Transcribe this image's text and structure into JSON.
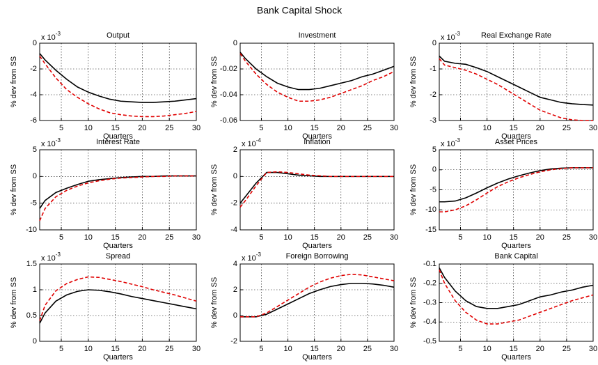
{
  "title": "Bank Capital Shock",
  "chart_data": [
    {
      "type": "line",
      "title": "Output",
      "xlabel": "Quarters",
      "ylabel": "% dev from SS",
      "y_multiplier": "x 10",
      "y_multiplier_exponent": "-3",
      "grid": true,
      "x": [
        1,
        2,
        4,
        6,
        8,
        10,
        12,
        14,
        16,
        18,
        20,
        22,
        24,
        26,
        28,
        30
      ],
      "xlim": [
        1,
        30
      ],
      "xticks": [
        5,
        10,
        15,
        20,
        25,
        30
      ],
      "ylim": [
        -6,
        0
      ],
      "yticks": [
        -6,
        -4,
        -2,
        0
      ],
      "series": [
        {
          "color": "#000000",
          "line_style": "solid",
          "values": [
            -0.8,
            -1.3,
            -2.1,
            -2.8,
            -3.4,
            -3.8,
            -4.1,
            -4.35,
            -4.5,
            -4.55,
            -4.6,
            -4.6,
            -4.55,
            -4.5,
            -4.4,
            -4.3
          ]
        },
        {
          "color": "#e00000",
          "line_style": "dashed",
          "values": [
            -1.0,
            -1.6,
            -2.7,
            -3.6,
            -4.2,
            -4.7,
            -5.1,
            -5.4,
            -5.55,
            -5.65,
            -5.7,
            -5.7,
            -5.65,
            -5.55,
            -5.45,
            -5.3
          ]
        }
      ]
    },
    {
      "type": "line",
      "title": "Investment",
      "xlabel": "Quarters",
      "ylabel": "% dev from SS",
      "grid": true,
      "x": [
        1,
        2,
        4,
        6,
        8,
        10,
        12,
        14,
        16,
        18,
        20,
        22,
        24,
        26,
        28,
        30
      ],
      "xlim": [
        1,
        30
      ],
      "xticks": [
        5,
        10,
        15,
        20,
        25,
        30
      ],
      "ylim": [
        -0.06,
        0
      ],
      "yticks": [
        -0.06,
        -0.04,
        -0.02,
        0
      ],
      "series": [
        {
          "color": "#000000",
          "line_style": "solid",
          "values": [
            -0.007,
            -0.012,
            -0.02,
            -0.026,
            -0.031,
            -0.034,
            -0.036,
            -0.036,
            -0.035,
            -0.033,
            -0.031,
            -0.029,
            -0.026,
            -0.024,
            -0.021,
            -0.018
          ]
        },
        {
          "color": "#e00000",
          "line_style": "dashed",
          "values": [
            -0.008,
            -0.014,
            -0.024,
            -0.032,
            -0.038,
            -0.042,
            -0.045,
            -0.045,
            -0.044,
            -0.042,
            -0.039,
            -0.036,
            -0.033,
            -0.029,
            -0.026,
            -0.022
          ]
        }
      ]
    },
    {
      "type": "line",
      "title": "Real Exchange Rate",
      "xlabel": "Quarters",
      "ylabel": "% dev from SS",
      "y_multiplier": "x 10",
      "y_multiplier_exponent": "-3",
      "grid": true,
      "x": [
        1,
        2,
        4,
        6,
        8,
        10,
        12,
        14,
        16,
        18,
        20,
        22,
        24,
        26,
        28,
        30
      ],
      "xlim": [
        1,
        30
      ],
      "xticks": [
        5,
        10,
        15,
        20,
        25,
        30
      ],
      "ylim": [
        -3,
        0
      ],
      "yticks": [
        -3,
        -2,
        -1,
        0
      ],
      "series": [
        {
          "color": "#000000",
          "line_style": "solid",
          "values": [
            -0.5,
            -0.7,
            -0.78,
            -0.82,
            -0.95,
            -1.1,
            -1.3,
            -1.5,
            -1.7,
            -1.9,
            -2.1,
            -2.2,
            -2.3,
            -2.35,
            -2.38,
            -2.4
          ]
        },
        {
          "color": "#e00000",
          "line_style": "dashed",
          "values": [
            -0.6,
            -0.85,
            -0.95,
            -1.05,
            -1.2,
            -1.4,
            -1.6,
            -1.85,
            -2.1,
            -2.35,
            -2.6,
            -2.75,
            -2.9,
            -2.97,
            -3.0,
            -3.0
          ]
        }
      ]
    },
    {
      "type": "line",
      "title": "Interest Rate",
      "xlabel": "Quarters",
      "ylabel": "% dev from SS",
      "y_multiplier": "x 10",
      "y_multiplier_exponent": "-3",
      "grid": true,
      "x": [
        1,
        2,
        4,
        6,
        8,
        10,
        12,
        14,
        16,
        18,
        20,
        22,
        24,
        26,
        28,
        30
      ],
      "xlim": [
        1,
        30
      ],
      "xticks": [
        5,
        10,
        15,
        20,
        25,
        30
      ],
      "ylim": [
        -10,
        5
      ],
      "yticks": [
        -10,
        -5,
        0,
        5
      ],
      "series": [
        {
          "color": "#000000",
          "line_style": "solid",
          "values": [
            -6,
            -4.5,
            -3,
            -2.2,
            -1.5,
            -0.9,
            -0.6,
            -0.4,
            -0.2,
            -0.1,
            0,
            0,
            0.1,
            0.1,
            0.1,
            0.1
          ]
        },
        {
          "color": "#e00000",
          "line_style": "dashed",
          "values": [
            -8.3,
            -6,
            -3.8,
            -2.6,
            -1.8,
            -1.2,
            -0.8,
            -0.5,
            -0.3,
            -0.2,
            -0.1,
            0,
            0,
            0.1,
            0.1,
            0.1
          ]
        }
      ]
    },
    {
      "type": "line",
      "title": "Inflation",
      "xlabel": "Quarters",
      "ylabel": "% dev from SS",
      "y_multiplier": "x 10",
      "y_multiplier_exponent": "-4",
      "grid": true,
      "x": [
        1,
        2,
        4,
        6,
        8,
        10,
        12,
        14,
        16,
        18,
        20,
        22,
        24,
        26,
        28,
        30
      ],
      "xlim": [
        1,
        30
      ],
      "xticks": [
        5,
        10,
        15,
        20,
        25,
        30
      ],
      "ylim": [
        -4,
        2
      ],
      "yticks": [
        -4,
        -2,
        0,
        2
      ],
      "series": [
        {
          "color": "#000000",
          "line_style": "solid",
          "values": [
            -2,
            -1.5,
            -0.5,
            0.3,
            0.3,
            0.2,
            0.1,
            0.05,
            0,
            0,
            0,
            0,
            0,
            0,
            0,
            0
          ]
        },
        {
          "color": "#e00000",
          "line_style": "dashed",
          "values": [
            -2.3,
            -1.8,
            -0.7,
            0.3,
            0.35,
            0.3,
            0.2,
            0.1,
            0.05,
            0,
            0,
            0,
            0,
            0,
            0,
            0
          ]
        }
      ]
    },
    {
      "type": "line",
      "title": "Asset Prices",
      "xlabel": "Quarters",
      "ylabel": "% dev from SS",
      "y_multiplier": "x 10",
      "y_multiplier_exponent": "-3",
      "grid": true,
      "x": [
        1,
        2,
        4,
        6,
        8,
        10,
        12,
        14,
        16,
        18,
        20,
        22,
        24,
        26,
        28,
        30
      ],
      "xlim": [
        1,
        30
      ],
      "xticks": [
        5,
        10,
        15,
        20,
        25,
        30
      ],
      "ylim": [
        -15,
        5
      ],
      "yticks": [
        -15,
        -10,
        -5,
        0,
        5
      ],
      "series": [
        {
          "color": "#000000",
          "line_style": "solid",
          "values": [
            -8,
            -8,
            -7.8,
            -7,
            -5.8,
            -4.5,
            -3.3,
            -2.3,
            -1.5,
            -0.8,
            -0.2,
            0.2,
            0.4,
            0.5,
            0.5,
            0.5
          ]
        },
        {
          "color": "#e00000",
          "line_style": "dashed",
          "values": [
            -10.5,
            -10.5,
            -10,
            -9,
            -7.5,
            -5.8,
            -4.2,
            -3,
            -2,
            -1.2,
            -0.5,
            0,
            0.3,
            0.5,
            0.5,
            0.5
          ]
        }
      ]
    },
    {
      "type": "line",
      "title": "Spread",
      "xlabel": "Quarters",
      "ylabel": "% dev from SS",
      "y_multiplier": "x 10",
      "y_multiplier_exponent": "-3",
      "grid": true,
      "x": [
        1,
        2,
        4,
        6,
        8,
        10,
        12,
        14,
        16,
        18,
        20,
        22,
        24,
        26,
        28,
        30
      ],
      "xlim": [
        1,
        30
      ],
      "xticks": [
        5,
        10,
        15,
        20,
        25,
        30
      ],
      "ylim": [
        0,
        1.5
      ],
      "yticks": [
        0,
        0.5,
        1,
        1.5
      ],
      "series": [
        {
          "color": "#000000",
          "line_style": "solid",
          "values": [
            0.35,
            0.55,
            0.78,
            0.9,
            0.97,
            1.0,
            0.99,
            0.96,
            0.92,
            0.87,
            0.83,
            0.79,
            0.75,
            0.71,
            0.67,
            0.63
          ]
        },
        {
          "color": "#e00000",
          "line_style": "dashed",
          "values": [
            0.4,
            0.7,
            0.98,
            1.12,
            1.2,
            1.25,
            1.24,
            1.2,
            1.16,
            1.11,
            1.06,
            1.0,
            0.95,
            0.9,
            0.84,
            0.78
          ]
        }
      ]
    },
    {
      "type": "line",
      "title": "Foreign Borrowing",
      "xlabel": "Quarters",
      "ylabel": "% dev from SS",
      "y_multiplier": "x 10",
      "y_multiplier_exponent": "-3",
      "grid": true,
      "x": [
        1,
        2,
        4,
        6,
        8,
        10,
        12,
        14,
        16,
        18,
        20,
        22,
        24,
        26,
        28,
        30
      ],
      "xlim": [
        1,
        30
      ],
      "xticks": [
        5,
        10,
        15,
        20,
        25,
        30
      ],
      "ylim": [
        -2,
        4
      ],
      "yticks": [
        -2,
        0,
        2,
        4
      ],
      "series": [
        {
          "color": "#000000",
          "line_style": "solid",
          "values": [
            -0.1,
            -0.1,
            -0.1,
            0.1,
            0.5,
            0.9,
            1.3,
            1.7,
            2.0,
            2.25,
            2.4,
            2.5,
            2.5,
            2.45,
            2.35,
            2.2
          ]
        },
        {
          "color": "#e00000",
          "line_style": "dashed",
          "values": [
            -0.1,
            -0.1,
            -0.1,
            0.2,
            0.7,
            1.2,
            1.7,
            2.2,
            2.6,
            2.9,
            3.1,
            3.2,
            3.15,
            3.0,
            2.85,
            2.7
          ]
        }
      ]
    },
    {
      "type": "line",
      "title": "Bank Capital",
      "xlabel": "Quarters",
      "ylabel": "% dev from SS",
      "grid": true,
      "x": [
        1,
        2,
        4,
        6,
        8,
        10,
        12,
        14,
        16,
        18,
        20,
        22,
        24,
        26,
        28,
        30
      ],
      "xlim": [
        1,
        30
      ],
      "xticks": [
        5,
        10,
        15,
        20,
        25,
        30
      ],
      "ylim": [
        -0.5,
        -0.1
      ],
      "yticks": [
        -0.5,
        -0.4,
        -0.3,
        -0.2,
        -0.1
      ],
      "series": [
        {
          "color": "#000000",
          "line_style": "solid",
          "values": [
            -0.12,
            -0.17,
            -0.24,
            -0.29,
            -0.32,
            -0.33,
            -0.33,
            -0.32,
            -0.31,
            -0.29,
            -0.27,
            -0.26,
            -0.245,
            -0.235,
            -0.22,
            -0.21
          ]
        },
        {
          "color": "#e00000",
          "line_style": "dashed",
          "values": [
            -0.13,
            -0.2,
            -0.29,
            -0.35,
            -0.39,
            -0.41,
            -0.41,
            -0.4,
            -0.39,
            -0.37,
            -0.35,
            -0.33,
            -0.31,
            -0.29,
            -0.275,
            -0.26
          ]
        }
      ]
    }
  ]
}
